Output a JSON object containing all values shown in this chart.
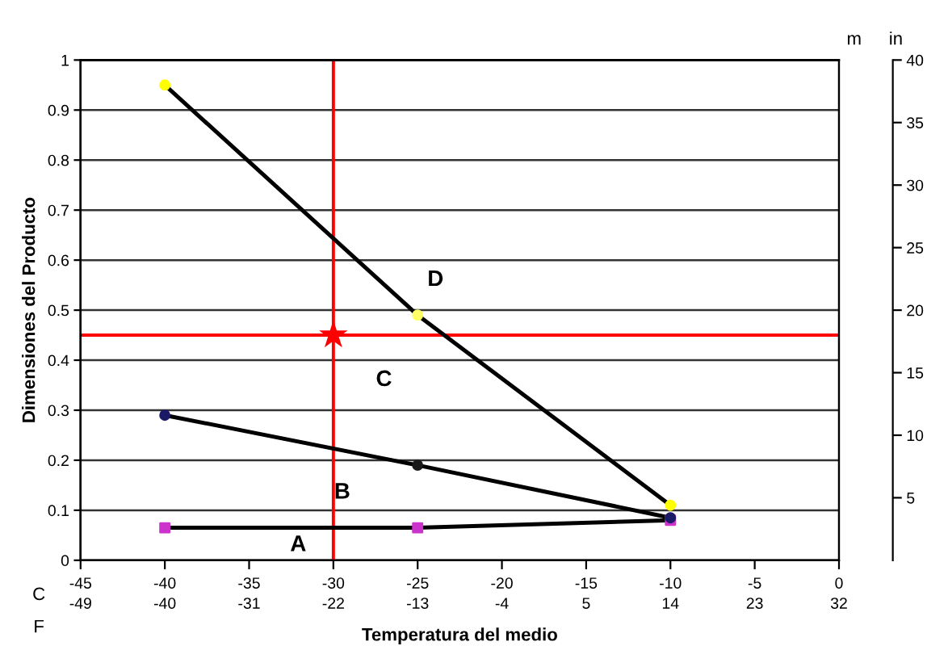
{
  "chart_data": {
    "type": "line",
    "xlabel": "Temperatura del medio",
    "ylabel": "Dimensiones del Producto",
    "xlim": [
      -45,
      0
    ],
    "xticks": [
      -45,
      -40,
      -35,
      -30,
      -25,
      -20,
      -15,
      -10,
      -5,
      0
    ],
    "x2lim": [
      -49,
      32
    ],
    "x2ticks": [
      -49,
      -40,
      -31,
      -22,
      -13,
      -4,
      5,
      14,
      23,
      32
    ],
    "ylim": [
      0,
      1
    ],
    "yticks": [
      0,
      0.1,
      0.2,
      0.3,
      0.4,
      0.5,
      0.6,
      0.7,
      0.8,
      0.9,
      1
    ],
    "y2lim": [
      0,
      40
    ],
    "y2ticks": [
      5,
      10,
      15,
      20,
      25,
      30,
      35,
      40
    ],
    "grid": "y",
    "series": [
      {
        "x": [
          -40,
          -25,
          -10
        ],
        "values": [
          0.065,
          0.065,
          0.08
        ],
        "color": "#000000",
        "colors": [
          "#cc33cc",
          "#cc33cc",
          "#cc33cc"
        ],
        "marker": "square"
      },
      {
        "x": [
          -40,
          -25,
          -10
        ],
        "values": [
          0.29,
          0.19,
          0.085
        ],
        "color": "#000000",
        "colors": [
          "#1a1a66",
          "#1a1a1a",
          "#1a1a66"
        ],
        "marker": "circle"
      },
      {
        "x": [
          -40,
          -25,
          -10
        ],
        "values": [
          0.95,
          0.49,
          0.11
        ],
        "color": "#000000",
        "colors": [
          "#ffff00",
          "#ffff66",
          "#ffff00"
        ],
        "marker": "circle"
      },
      {
        "type": "scatter",
        "x": [
          -30
        ],
        "values": [
          0.45
        ],
        "color": "#ff0000",
        "marker": "star"
      }
    ],
    "ref_lines": [
      {
        "axis": "x",
        "value": -30,
        "color": "#ff0000"
      },
      {
        "axis": "y",
        "value": 0.45,
        "color": "#ff0000"
      }
    ],
    "annotations": [
      "A",
      "B",
      "C",
      "D",
      "C",
      "F",
      "m",
      "in"
    ]
  }
}
